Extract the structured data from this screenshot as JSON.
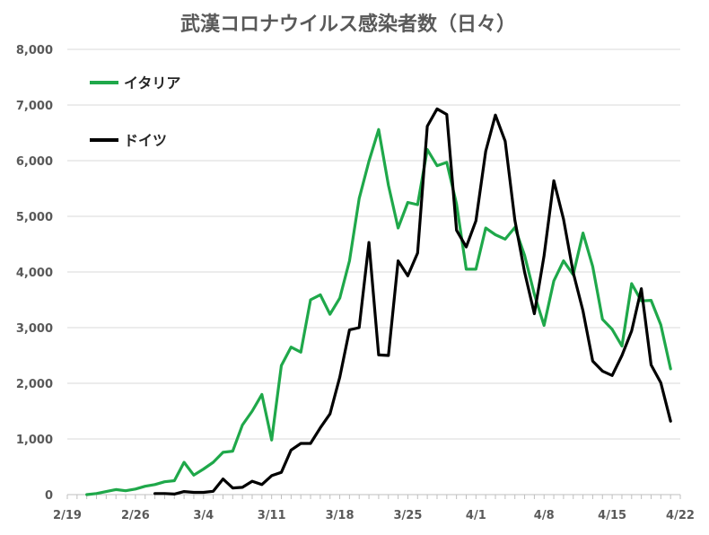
{
  "chart_data": {
    "type": "line",
    "title": "武漢コロナウイルス感染者数（日々）",
    "xlabel": "",
    "ylabel": "",
    "ylim": [
      0,
      8000
    ],
    "yticks": [
      0,
      1000,
      2000,
      3000,
      4000,
      5000,
      6000,
      7000,
      8000
    ],
    "ytick_labels": [
      "0",
      "1,000",
      "2,000",
      "3,000",
      "4,000",
      "5,000",
      "6,000",
      "7,000",
      "8,000"
    ],
    "xlim": [
      "2020-02-19",
      "2020-04-22"
    ],
    "xtick_labels": [
      "2/19",
      "2/26",
      "3/4",
      "3/11",
      "3/18",
      "3/25",
      "4/1",
      "4/8",
      "4/15",
      "4/22"
    ],
    "grid": true,
    "legend_position": "top-left",
    "series": [
      {
        "name": "イタリア",
        "color": "#1fa84a",
        "start": "2020-02-21",
        "values": [
          0,
          20,
          55,
          90,
          70,
          100,
          150,
          180,
          230,
          250,
          580,
          350,
          460,
          580,
          760,
          780,
          1250,
          1500,
          1800,
          980,
          2320,
          2650,
          2560,
          3500,
          3590,
          3240,
          3530,
          4200,
          5320,
          5990,
          6560,
          5560,
          4790,
          5250,
          5210,
          6200,
          5910,
          5970,
          5220,
          4050,
          4050,
          4790,
          4670,
          4590,
          4800,
          4300,
          3600,
          3040,
          3840,
          4200,
          3950,
          4700,
          4100,
          3150,
          2970,
          2670,
          3790,
          3480,
          3490,
          3050,
          2260
        ]
      },
      {
        "name": "ドイツ",
        "color": "#000000",
        "start": "2020-02-28",
        "values": [
          20,
          20,
          10,
          55,
          40,
          40,
          60,
          280,
          120,
          130,
          240,
          180,
          340,
          400,
          800,
          920,
          920,
          1200,
          1450,
          2110,
          2960,
          3000,
          4530,
          2510,
          2500,
          4200,
          3930,
          4340,
          6620,
          6930,
          6830,
          4750,
          4450,
          4920,
          6170,
          6820,
          6350,
          4930,
          4000,
          3250,
          4290,
          5640,
          4950,
          3990,
          3300,
          2400,
          2220,
          2140,
          2500,
          2940,
          3700,
          2330,
          2010,
          1320
        ]
      }
    ]
  }
}
